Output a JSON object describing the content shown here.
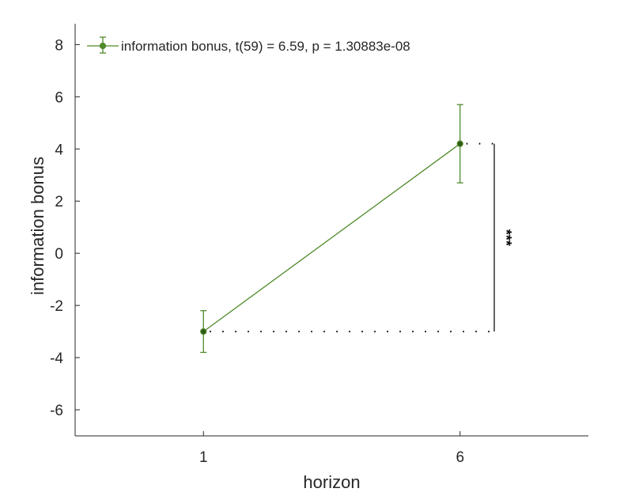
{
  "chart_data": {
    "type": "line",
    "x": [
      1,
      6
    ],
    "xtick_labels": [
      "1",
      "6"
    ],
    "xlabel": "horizon",
    "ylabel": "information bonus",
    "xlim": [
      -1.5,
      8.5
    ],
    "ylim": [
      -7,
      8.8
    ],
    "yticks": [
      -6,
      -4,
      -2,
      0,
      2,
      4,
      6,
      8
    ],
    "ytick_labels": [
      "-6",
      "-4",
      "-2",
      "0",
      "2",
      "4",
      "6",
      "8"
    ],
    "series": [
      {
        "name": "information bonus, t(59) = 6.59, p = 1.30883e-08",
        "values": [
          -3.0,
          4.2
        ],
        "err_low": [
          -3.8,
          2.7
        ],
        "err_high": [
          -2.2,
          5.7
        ],
        "color": "#4f8a2a"
      }
    ],
    "annotation": "***",
    "legend_position": "top-left",
    "grid": false
  }
}
